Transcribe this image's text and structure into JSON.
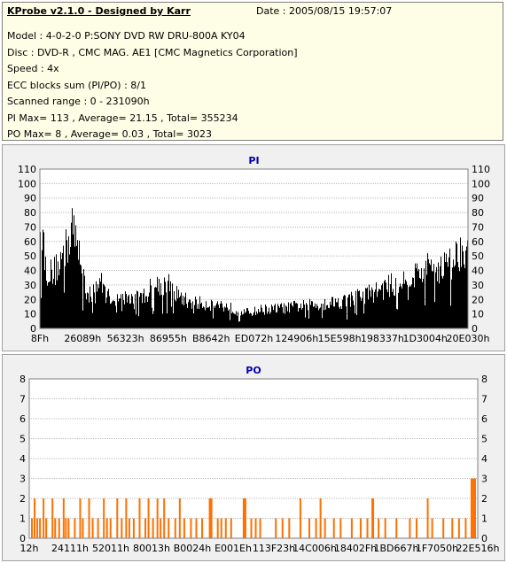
{
  "header": {
    "app_title": "KProbe v2.1.0 - Designed by Karr",
    "date": "Date : 2005/08/15 19:57:07",
    "lines": [
      "Model : 4-0-2-0 P:SONY    DVD RW DRU-800A  KY04",
      "Disc : DVD-R , CMC MAG. AE1 [CMC Magnetics Corporation]",
      "Speed : 4x",
      "ECC blocks sum (PI/PO) : 8/1",
      "Scanned range : 0 - 231090h",
      "PI Max= 113 , Average= 21.15 , Total= 355234",
      "PO Max= 8 , Average= 0.03 , Total= 3023"
    ]
  },
  "colors": {
    "pi_fill": "#000000",
    "po_fill": "#ff7000",
    "plot_bg": "#ffffff",
    "panel_bg": "#f0f0f0",
    "grid": "#bcbcbc",
    "title": "#0000b0",
    "info_bg": "#fefee6"
  },
  "chart_data": [
    {
      "type": "area",
      "title": "PI",
      "xlabel": "",
      "ylabel": "",
      "ylim": [
        0,
        110
      ],
      "yticks": [
        0,
        10,
        20,
        30,
        40,
        50,
        60,
        70,
        80,
        90,
        100,
        110
      ],
      "yticks_both_sides": true,
      "grid": true,
      "xtick_labels": [
        "8Fh",
        "26089h",
        "56323h",
        "86955h",
        "B8642h",
        "ED072h",
        "124906h",
        "15E598h",
        "198337h",
        "1D3004h",
        "20E030h"
      ],
      "x_range": [
        "0h",
        "231090h"
      ],
      "envelope": {
        "x_frac": [
          0,
          0.004,
          0.008,
          0.012,
          0.02,
          0.03,
          0.04,
          0.05,
          0.06,
          0.07,
          0.075,
          0.08,
          0.09,
          0.1,
          0.11,
          0.12,
          0.13,
          0.14,
          0.15,
          0.16,
          0.17,
          0.18,
          0.2,
          0.22,
          0.24,
          0.26,
          0.28,
          0.3,
          0.31,
          0.32,
          0.34,
          0.36,
          0.38,
          0.4,
          0.42,
          0.44,
          0.46,
          0.48,
          0.5,
          0.52,
          0.54,
          0.56,
          0.58,
          0.6,
          0.62,
          0.64,
          0.66,
          0.68,
          0.7,
          0.72,
          0.74,
          0.76,
          0.78,
          0.8,
          0.82,
          0.84,
          0.86,
          0.88,
          0.9,
          0.92,
          0.94,
          0.96,
          0.97,
          0.98,
          0.99,
          1.0
        ],
        "values": [
          112,
          95,
          75,
          55,
          50,
          48,
          56,
          62,
          70,
          85,
          95,
          78,
          68,
          60,
          28,
          30,
          38,
          42,
          34,
          28,
          28,
          25,
          27,
          27,
          28,
          36,
          40,
          38,
          35,
          30,
          25,
          23,
          22,
          22,
          21,
          19,
          16,
          14,
          15,
          17,
          17,
          18,
          18,
          20,
          20,
          21,
          22,
          23,
          24,
          25,
          28,
          30,
          32,
          35,
          38,
          40,
          45,
          48,
          52,
          55,
          55,
          58,
          62,
          68,
          78,
          72
        ]
      }
    },
    {
      "type": "bar",
      "title": "PO",
      "xlabel": "",
      "ylabel": "",
      "ylim": [
        0,
        8
      ],
      "yticks": [
        0,
        1,
        2,
        3,
        4,
        5,
        6,
        7,
        8
      ],
      "yticks_both_sides": true,
      "grid": true,
      "xtick_labels": [
        "12h",
        "24111h",
        "52011h",
        "80013h",
        "B0024h",
        "E001Eh",
        "113F23h",
        "14C006h",
        "18402Fh",
        "1BD667h",
        "1F7050h",
        "22E516h"
      ],
      "x_range": [
        "0h",
        "231090h"
      ],
      "bars": {
        "x_frac": [
          0.004,
          0.01,
          0.016,
          0.022,
          0.03,
          0.036,
          0.05,
          0.056,
          0.065,
          0.075,
          0.08,
          0.086,
          0.1,
          0.112,
          0.118,
          0.132,
          0.14,
          0.152,
          0.165,
          0.172,
          0.18,
          0.195,
          0.205,
          0.215,
          0.222,
          0.232,
          0.245,
          0.258,
          0.265,
          0.275,
          0.285,
          0.292,
          0.3,
          0.31,
          0.325,
          0.335,
          0.345,
          0.36,
          0.372,
          0.385,
          0.402,
          0.404,
          0.406,
          0.42,
          0.428,
          0.438,
          0.45,
          0.478,
          0.48,
          0.482,
          0.495,
          0.505,
          0.515,
          0.55,
          0.565,
          0.58,
          0.605,
          0.625,
          0.64,
          0.65,
          0.66,
          0.68,
          0.695,
          0.72,
          0.74,
          0.755,
          0.766,
          0.768,
          0.78,
          0.795,
          0.82,
          0.85,
          0.865,
          0.89,
          0.9,
          0.925,
          0.945,
          0.96,
          0.975,
          0.988,
          0.992,
          0.996
        ],
        "values": [
          1,
          2,
          1,
          1,
          2,
          1,
          2,
          1,
          1,
          2,
          1,
          1,
          1,
          2,
          1,
          2,
          1,
          1,
          2,
          1,
          1,
          2,
          1,
          2,
          1,
          1,
          2,
          1,
          2,
          1,
          2,
          1,
          2,
          1,
          1,
          2,
          1,
          1,
          1,
          1,
          2,
          2,
          2,
          1,
          1,
          1,
          1,
          2,
          2,
          2,
          1,
          1,
          1,
          1,
          1,
          1,
          2,
          1,
          1,
          2,
          1,
          1,
          1,
          1,
          1,
          1,
          2,
          2,
          1,
          1,
          1,
          1,
          1,
          2,
          1,
          1,
          1,
          1,
          1,
          3,
          3,
          3
        ]
      }
    }
  ]
}
